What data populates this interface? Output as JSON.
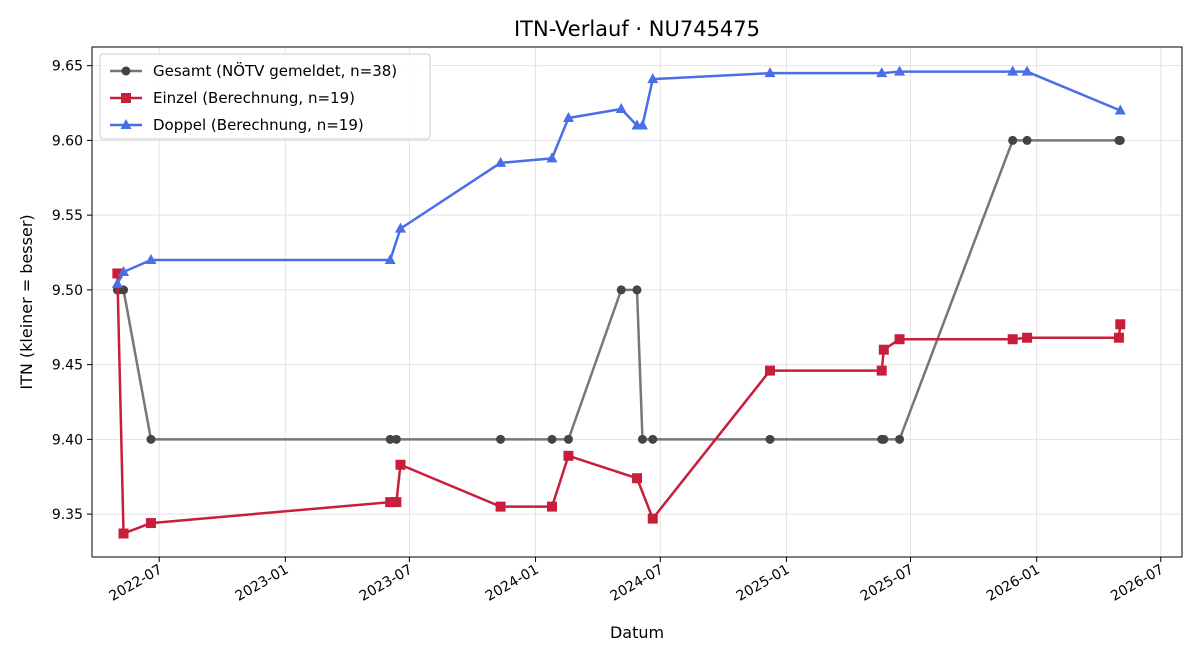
{
  "chart_data": {
    "type": "line",
    "title": "ITN-Verlauf · NU745475",
    "xlabel": "Datum",
    "ylabel": "ITN  (kleiner = besser)",
    "x_axis": "date",
    "xlim": [
      "2022-03-25",
      "2026-08-01"
    ],
    "ylim": [
      9.3213,
      9.6625
    ],
    "x_ticks": [
      "2022-07-01",
      "2023-01-01",
      "2023-07-01",
      "2024-01-01",
      "2024-07-01",
      "2025-01-01",
      "2025-07-01",
      "2026-01-01",
      "2026-07-01"
    ],
    "x_tick_labels": [
      "2022-07",
      "2023-01",
      "2023-07",
      "2024-01",
      "2024-07",
      "2025-01",
      "2025-07",
      "2026-01",
      "2026-07"
    ],
    "y_ticks": [
      9.35,
      9.4,
      9.45,
      9.5,
      9.55,
      9.6,
      9.65
    ],
    "y_tick_labels": [
      "9.35",
      "9.40",
      "9.45",
      "9.50",
      "9.55",
      "9.60",
      "9.65"
    ],
    "grid": true,
    "legend_position": "top-left",
    "series": [
      {
        "name": "Gesamt (NÖTV gemeldet, n=38)",
        "color": "#444444",
        "line_color": "#777777",
        "marker": "circle",
        "points": [
          [
            "2022-05-01",
            9.5
          ],
          [
            "2022-05-03",
            9.5
          ],
          [
            "2022-05-10",
            9.5
          ],
          [
            "2022-06-19",
            9.4
          ],
          [
            "2023-06-03",
            9.4
          ],
          [
            "2023-06-12",
            9.4
          ],
          [
            "2023-11-11",
            9.4
          ],
          [
            "2024-01-25",
            9.4
          ],
          [
            "2024-02-18",
            9.4
          ],
          [
            "2024-05-05",
            9.5
          ],
          [
            "2024-05-28",
            9.5
          ],
          [
            "2024-06-05",
            9.4
          ],
          [
            "2024-06-20",
            9.4
          ],
          [
            "2024-12-08",
            9.4
          ],
          [
            "2025-05-20",
            9.4
          ],
          [
            "2025-05-23",
            9.4
          ],
          [
            "2025-06-15",
            9.4
          ],
          [
            "2025-11-27",
            9.6
          ],
          [
            "2025-12-18",
            9.6
          ],
          [
            "2026-05-01",
            9.6
          ],
          [
            "2026-05-03",
            9.6
          ]
        ]
      },
      {
        "name": "Einzel (Berechnung, n=19)",
        "color": "#c81e3c",
        "marker": "square",
        "points": [
          [
            "2022-05-01",
            9.511
          ],
          [
            "2022-05-10",
            9.337
          ],
          [
            "2022-06-19",
            9.344
          ],
          [
            "2023-06-03",
            9.358
          ],
          [
            "2023-06-12",
            9.358
          ],
          [
            "2023-06-18",
            9.383
          ],
          [
            "2023-11-11",
            9.355
          ],
          [
            "2024-01-25",
            9.355
          ],
          [
            "2024-02-18",
            9.389
          ],
          [
            "2024-05-28",
            9.374
          ],
          [
            "2024-06-20",
            9.347
          ],
          [
            "2024-12-08",
            9.446
          ],
          [
            "2025-05-20",
            9.446
          ],
          [
            "2025-05-23",
            9.46
          ],
          [
            "2025-06-15",
            9.467
          ],
          [
            "2025-11-27",
            9.467
          ],
          [
            "2025-12-18",
            9.468
          ],
          [
            "2026-05-01",
            9.468
          ],
          [
            "2026-05-03",
            9.477
          ]
        ]
      },
      {
        "name": "Doppel (Berechnung, n=19)",
        "color": "#4a6ee8",
        "marker": "triangle",
        "points": [
          [
            "2022-05-01",
            9.504
          ],
          [
            "2022-05-10",
            9.512
          ],
          [
            "2022-06-19",
            9.52
          ],
          [
            "2023-06-03",
            9.52
          ],
          [
            "2023-06-18",
            9.541
          ],
          [
            "2023-11-11",
            9.585
          ],
          [
            "2024-01-25",
            9.588
          ],
          [
            "2024-02-18",
            9.615
          ],
          [
            "2024-05-05",
            9.621
          ],
          [
            "2024-05-28",
            9.61
          ],
          [
            "2024-06-05",
            9.61
          ],
          [
            "2024-06-20",
            9.641
          ],
          [
            "2024-12-08",
            9.645
          ],
          [
            "2025-05-20",
            9.645
          ],
          [
            "2025-06-15",
            9.646
          ],
          [
            "2025-11-27",
            9.646
          ],
          [
            "2025-12-18",
            9.646
          ],
          [
            "2026-05-03",
            9.62
          ]
        ]
      }
    ]
  }
}
